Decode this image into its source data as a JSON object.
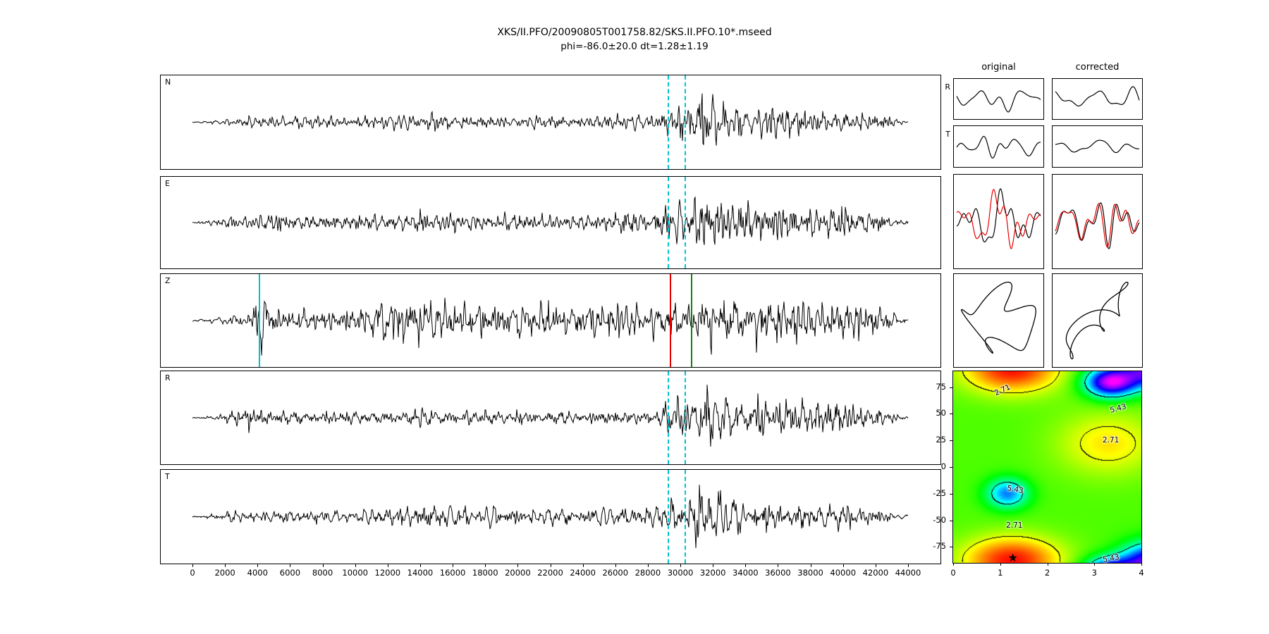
{
  "chart_data": {
    "type": "seismic-shear-wave-splitting-figure",
    "title": "XKS/II.PFO/20090805T001758.82/SKS.II.PFO.10*.mseed",
    "subtitle": "phi=-86.0±20.0 dt=1.28±1.19",
    "colors": {
      "trace": "#000000",
      "overlay_trace": "#e60000",
      "window_line": "#00c3cf",
      "z_cyan": "#00c3cf",
      "z_red": "#e60000",
      "z_green": "#128012"
    },
    "waveform_axis": {
      "xmin": 0,
      "xmax": 44000,
      "ticks": [
        0,
        2000,
        4000,
        6000,
        8000,
        10000,
        12000,
        14000,
        16000,
        18000,
        20000,
        22000,
        24000,
        26000,
        28000,
        30000,
        32000,
        34000,
        36000,
        38000,
        40000,
        42000,
        44000
      ]
    },
    "window": {
      "start": 29200,
      "end": 30250
    },
    "z_markers": {
      "cyan": 4075,
      "red": 29350,
      "green": 30650
    },
    "panels": [
      {
        "label": "N",
        "seed": 101,
        "envelope": [
          [
            0,
            0.02
          ],
          [
            1200,
            0.05
          ],
          [
            2500,
            0.13
          ],
          [
            5000,
            0.16
          ],
          [
            9000,
            0.15
          ],
          [
            13000,
            0.18
          ],
          [
            15000,
            0.22
          ],
          [
            18000,
            0.17
          ],
          [
            21000,
            0.15
          ],
          [
            24000,
            0.16
          ],
          [
            26500,
            0.18
          ],
          [
            28500,
            0.22
          ],
          [
            29500,
            0.4
          ],
          [
            30200,
            0.45
          ],
          [
            30900,
            0.5
          ],
          [
            31300,
            1.0
          ],
          [
            31800,
            0.75
          ],
          [
            32600,
            0.55
          ],
          [
            33500,
            0.45
          ],
          [
            35000,
            0.5
          ],
          [
            36500,
            0.4
          ],
          [
            38000,
            0.32
          ],
          [
            40000,
            0.35
          ],
          [
            41500,
            0.28
          ],
          [
            42800,
            0.18
          ],
          [
            43400,
            0.06
          ],
          [
            44000,
            0.05
          ]
        ]
      },
      {
        "label": "E",
        "seed": 202,
        "envelope": [
          [
            0,
            0.02
          ],
          [
            1000,
            0.06
          ],
          [
            2200,
            0.16
          ],
          [
            4000,
            0.2
          ],
          [
            7000,
            0.17
          ],
          [
            10000,
            0.2
          ],
          [
            12500,
            0.24
          ],
          [
            14000,
            0.3
          ],
          [
            15500,
            0.22
          ],
          [
            18000,
            0.2
          ],
          [
            20500,
            0.22
          ],
          [
            23000,
            0.2
          ],
          [
            25500,
            0.26
          ],
          [
            26800,
            0.35
          ],
          [
            28000,
            0.25
          ],
          [
            29200,
            0.5
          ],
          [
            29800,
            0.6
          ],
          [
            30500,
            0.45
          ],
          [
            31200,
            0.7
          ],
          [
            31800,
            0.85
          ],
          [
            32500,
            0.6
          ],
          [
            33800,
            0.5
          ],
          [
            35500,
            0.55
          ],
          [
            37000,
            0.45
          ],
          [
            38500,
            0.4
          ],
          [
            40500,
            0.42
          ],
          [
            42000,
            0.3
          ],
          [
            43200,
            0.12
          ],
          [
            43800,
            0.05
          ],
          [
            44000,
            0.05
          ]
        ]
      },
      {
        "label": "Z",
        "seed": 303,
        "envelope": [
          [
            0,
            0.02
          ],
          [
            1000,
            0.05
          ],
          [
            2500,
            0.12
          ],
          [
            3600,
            0.15
          ],
          [
            3900,
            0.55
          ],
          [
            4300,
            0.85
          ],
          [
            4800,
            0.45
          ],
          [
            5500,
            0.3
          ],
          [
            7000,
            0.28
          ],
          [
            9000,
            0.32
          ],
          [
            11000,
            0.45
          ],
          [
            12500,
            0.55
          ],
          [
            13500,
            0.45
          ],
          [
            15000,
            0.5
          ],
          [
            16500,
            0.55
          ],
          [
            18000,
            0.45
          ],
          [
            19500,
            0.5
          ],
          [
            21000,
            0.45
          ],
          [
            23000,
            0.48
          ],
          [
            25000,
            0.45
          ],
          [
            26500,
            0.5
          ],
          [
            28000,
            0.42
          ],
          [
            29300,
            0.5
          ],
          [
            30000,
            0.45
          ],
          [
            30800,
            0.6
          ],
          [
            31500,
            0.75
          ],
          [
            32300,
            0.6
          ],
          [
            33500,
            0.55
          ],
          [
            35000,
            0.6
          ],
          [
            36500,
            0.5
          ],
          [
            38000,
            0.55
          ],
          [
            39500,
            0.5
          ],
          [
            41000,
            0.55
          ],
          [
            42200,
            0.4
          ],
          [
            43200,
            0.15
          ],
          [
            43700,
            0.06
          ],
          [
            44000,
            0.05
          ]
        ]
      },
      {
        "label": "R",
        "seed": 404,
        "envelope": [
          [
            0,
            0.02
          ],
          [
            1200,
            0.05
          ],
          [
            2500,
            0.15
          ],
          [
            3500,
            0.3
          ],
          [
            4500,
            0.25
          ],
          [
            6000,
            0.18
          ],
          [
            9000,
            0.16
          ],
          [
            12000,
            0.18
          ],
          [
            14500,
            0.22
          ],
          [
            17000,
            0.18
          ],
          [
            20000,
            0.16
          ],
          [
            23000,
            0.17
          ],
          [
            26000,
            0.18
          ],
          [
            28500,
            0.2
          ],
          [
            29400,
            0.45
          ],
          [
            30000,
            0.55
          ],
          [
            30700,
            0.45
          ],
          [
            31300,
            0.75
          ],
          [
            31900,
            0.9
          ],
          [
            32800,
            0.6
          ],
          [
            34000,
            0.45
          ],
          [
            35500,
            0.55
          ],
          [
            37000,
            0.45
          ],
          [
            38500,
            0.38
          ],
          [
            40000,
            0.42
          ],
          [
            41500,
            0.3
          ],
          [
            42800,
            0.18
          ],
          [
            43400,
            0.07
          ],
          [
            44000,
            0.05
          ]
        ]
      },
      {
        "label": "T",
        "seed": 505,
        "envelope": [
          [
            0,
            0.02
          ],
          [
            1200,
            0.06
          ],
          [
            2500,
            0.14
          ],
          [
            5000,
            0.18
          ],
          [
            8000,
            0.16
          ],
          [
            11000,
            0.2
          ],
          [
            13500,
            0.26
          ],
          [
            15000,
            0.3
          ],
          [
            16500,
            0.24
          ],
          [
            19000,
            0.22
          ],
          [
            21500,
            0.24
          ],
          [
            24000,
            0.22
          ],
          [
            26500,
            0.25
          ],
          [
            28500,
            0.28
          ],
          [
            29500,
            0.45
          ],
          [
            30300,
            0.5
          ],
          [
            31000,
            0.9
          ],
          [
            31600,
            1.0
          ],
          [
            32200,
            0.7
          ],
          [
            33000,
            0.5
          ],
          [
            34500,
            0.45
          ],
          [
            36000,
            0.4
          ],
          [
            38000,
            0.35
          ],
          [
            40000,
            0.38
          ],
          [
            41500,
            0.3
          ],
          [
            42800,
            0.18
          ],
          [
            43400,
            0.07
          ],
          [
            44000,
            0.05
          ]
        ]
      }
    ],
    "comparison": {
      "headers": [
        "original",
        "corrected"
      ],
      "rows": [
        {
          "label": "R",
          "env": [
            [
              0,
              0.5
            ],
            [
              0.45,
              0.7
            ],
            [
              0.62,
              1.0
            ],
            [
              0.8,
              0.8
            ],
            [
              1,
              0.55
            ]
          ],
          "cells": [
            {
              "seed": 21,
              "scale": 10,
              "fmin": 0.012,
              "fmax": 0.05
            },
            {
              "seed": 27,
              "scale": 11,
              "fmin": 0.012,
              "fmax": 0.05
            }
          ]
        },
        {
          "label": "T",
          "env": [
            [
              0,
              0.6
            ],
            [
              0.5,
              1.0
            ],
            [
              1,
              0.6
            ]
          ],
          "cells": [
            {
              "seed": 23,
              "scale": 9,
              "fmin": 0.015,
              "fmax": 0.06
            },
            {
              "seed": 29,
              "scale": 6,
              "fmin": 0.012,
              "fmax": 0.05
            }
          ]
        },
        {
          "type": "overlay",
          "env": [
            [
              0,
              0.25
            ],
            [
              0.25,
              0.4
            ],
            [
              0.5,
              0.9
            ],
            [
              0.65,
              1.0
            ],
            [
              0.85,
              0.7
            ],
            [
              1,
              0.4
            ]
          ],
          "cells": [
            {
              "seed": 31,
              "noiseSeed": 36,
              "shift": 18,
              "redScale": 1.05,
              "redNoise": 0.4,
              "scale": 26
            },
            {
              "seed": 33,
              "noiseSeed": 37,
              "shift": 4,
              "redScale": 0.95,
              "redNoise": 0.12,
              "scale": 26
            }
          ]
        },
        {
          "type": "particle",
          "cells": [
            {
              "x": [
                [
                  1,
                  0.95,
                  0
                ],
                [
                  3,
                  0.3,
                  2.2
                ],
                [
                  5,
                  0.15,
                  1.0
                ]
              ],
              "y": [
                [
                  1,
                  0.9,
                  0
                ],
                [
                  4,
                  0.35,
                  0.3
                ]
              ]
            },
            {
              "x": [
                [
                  1,
                  0.8,
                  0
                ],
                [
                  2,
                  0.2,
                  0.3
                ],
                [
                  4,
                  0.2,
                  0.8
                ]
              ],
              "y": [
                [
                  1,
                  0.85,
                  -1.45
                ],
                [
                  3,
                  0.3,
                  1.2
                ],
                [
                  5,
                  0.1,
                  0.2
                ]
              ]
            }
          ]
        }
      ]
    },
    "error_surface": {
      "x_ticks": [
        0,
        1,
        2,
        3,
        4
      ],
      "y_ticks": [
        75,
        50,
        25,
        0,
        -25,
        -50,
        -75
      ],
      "x_range": [
        0,
        4
      ],
      "y_range": [
        -90,
        90
      ],
      "star": {
        "x": 1.28,
        "y": -86
      },
      "levels": [
        {
          "label": "2.71",
          "t": 0.22
        },
        {
          "label": "5.43",
          "t": 0.55
        }
      ],
      "contour_labels": [
        {
          "text": "2.71",
          "x": 1.05,
          "y": 72,
          "rot": -25
        },
        {
          "text": "5.43",
          "x": 3.5,
          "y": 55,
          "rot": -15
        },
        {
          "text": "2.71",
          "x": 3.35,
          "y": 25,
          "rot": 0
        },
        {
          "text": "5.43",
          "x": 1.32,
          "y": -21,
          "rot": 10
        },
        {
          "text": "2.71",
          "x": 1.3,
          "y": -55,
          "rot": 0
        },
        {
          "text": "5.43",
          "x": 3.35,
          "y": -86,
          "rot": -10
        }
      ],
      "field": {
        "base": 0.34,
        "gaussians": [
          {
            "amp": -0.33,
            "x": 1.25,
            "sx2": 1.1,
            "y": -88,
            "sy2": 500
          },
          {
            "amp": 0.63,
            "x": 3.35,
            "sx2": 0.3,
            "y": 80,
            "sy2": 200
          },
          {
            "amp": 0.52,
            "x": 4.2,
            "sx2": 0.35,
            "y": -88,
            "sy2": 300
          },
          {
            "amp": 0.36,
            "x": 1.15,
            "sx2": 0.2,
            "y": -25,
            "sy2": 200
          },
          {
            "amp": -0.16,
            "x": 3.3,
            "sx2": 1.2,
            "y": 22,
            "sy2": 900
          }
        ]
      }
    }
  }
}
